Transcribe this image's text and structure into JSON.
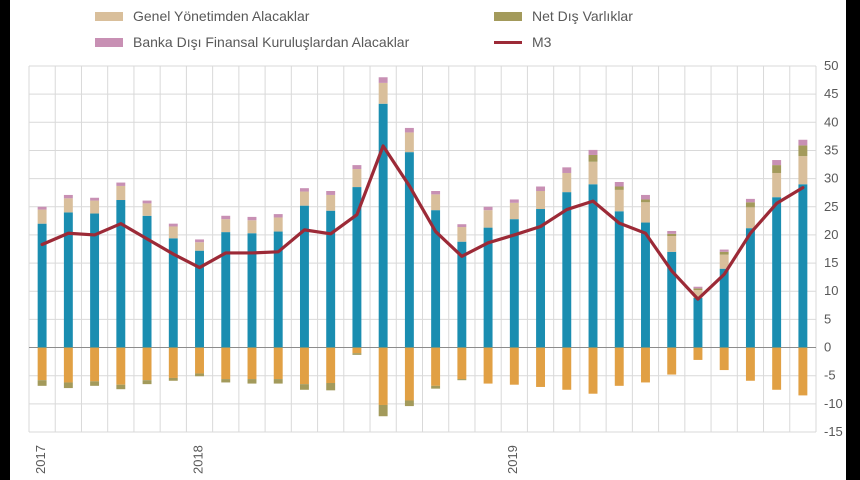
{
  "legend": [
    {
      "label": "Genel Yönetimden Alacaklar",
      "color": "#d9bf9b",
      "kind": "box"
    },
    {
      "label": "Net Dış Varlıklar",
      "color": "#a39a5b",
      "kind": "box"
    },
    {
      "label": "Banka Dışı Finansal Kuruluşlardan Alacaklar",
      "color": "#c890b4",
      "kind": "box"
    },
    {
      "label": "M3",
      "color": "#9c2a37",
      "kind": "line"
    }
  ],
  "chart_data": {
    "type": "bar",
    "ylim": [
      -15,
      50
    ],
    "yticks": [
      50,
      45,
      40,
      35,
      30,
      25,
      20,
      15,
      10,
      5,
      0,
      -5,
      -10,
      -15
    ],
    "year_labels": [
      {
        "label": "2017",
        "index": 0
      },
      {
        "label": "2018",
        "index": 6
      },
      {
        "label": "2019",
        "index": 18
      }
    ],
    "colors": {
      "private": "#1a8db0",
      "government": "#d9bf9b",
      "net_foreign": "#a39a5b",
      "nbfi": "#c890b4",
      "other": "#e1a044",
      "m3": "#9c2a37"
    },
    "series": [
      {
        "key": "private",
        "values": [
          22,
          24,
          23.8,
          26.2,
          23.4,
          19.4,
          17.2,
          20.5,
          20.3,
          20.6,
          25.2,
          24.3,
          28.5,
          43.3,
          34.7,
          24.4,
          18.8,
          21.3,
          22.8,
          24.6,
          27.6,
          29,
          24.2,
          22.2,
          17,
          8.8,
          14,
          21.2,
          26.7,
          29
        ]
      },
      {
        "key": "government",
        "values": [
          2.5,
          2.5,
          2.3,
          2.5,
          2.2,
          2.1,
          1.5,
          2.3,
          2.3,
          2.5,
          2.5,
          2.8,
          3.2,
          3.7,
          3.5,
          2.8,
          2.6,
          3.1,
          2.9,
          3.2,
          3.4,
          4,
          3.8,
          3.6,
          2.8,
          1.4,
          2.5,
          3.7,
          4.3,
          5
        ]
      },
      {
        "key": "net_foreign",
        "values": [
          0,
          0,
          0,
          0,
          0,
          0,
          0,
          0,
          0,
          0,
          0,
          0,
          0,
          0,
          0,
          0,
          0,
          0,
          0,
          0,
          0,
          1.2,
          0.6,
          0.5,
          0.4,
          0.3,
          0.5,
          0.9,
          1.4,
          1.9
        ]
      },
      {
        "key": "nbfi",
        "values": [
          0.5,
          0.6,
          0.5,
          0.6,
          0.5,
          0.5,
          0.5,
          0.6,
          0.6,
          0.6,
          0.6,
          0.7,
          0.7,
          1,
          0.8,
          0.6,
          0.5,
          0.6,
          0.6,
          0.8,
          1,
          0.9,
          0.8,
          0.8,
          0.5,
          0.3,
          0.4,
          0.6,
          0.9,
          1
        ]
      },
      {
        "key": "other",
        "values": [
          -5.8,
          -6.2,
          -6,
          -6.6,
          -5.8,
          -5.4,
          -4.6,
          -5.6,
          -5.6,
          -5.6,
          -6.5,
          -6.3,
          -1,
          -10.2,
          -9.4,
          -6.8,
          -5.6,
          -6.4,
          -6.6,
          -7,
          -7.5,
          -8.2,
          -6.8,
          -6.2,
          -4.8,
          -2.2,
          -4,
          -5.9,
          -7.5,
          -8.5
        ]
      },
      {
        "key": "net_foreign_neg",
        "values": [
          -1,
          -1,
          -0.8,
          -0.8,
          -0.7,
          -0.5,
          -0.5,
          -0.6,
          -0.8,
          -0.8,
          -1,
          -1.3,
          -0.3,
          -2,
          -1,
          -0.5,
          -0.2,
          0,
          0,
          0,
          0,
          0,
          0,
          0,
          0,
          0,
          0,
          0,
          0,
          0
        ]
      }
    ],
    "m3": [
      18.3,
      20.3,
      20,
      22,
      19.3,
      16.6,
      14.2,
      16.8,
      16.8,
      17,
      20.9,
      20.2,
      23.6,
      35.8,
      28.7,
      20.6,
      16.2,
      18.6,
      20,
      21.5,
      24.5,
      26,
      22.1,
      20.3,
      13.6,
      8.6,
      13,
      20.3,
      25.6,
      28.4
    ]
  }
}
